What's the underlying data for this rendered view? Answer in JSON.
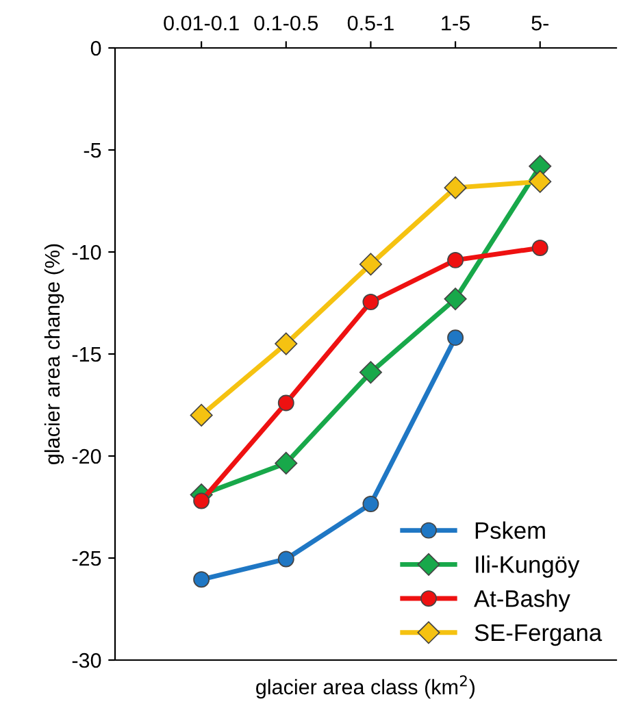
{
  "chart_data": {
    "type": "line",
    "xlabel": "glacier area class (km$^{2}$)",
    "ylabel": "glacier area change (%)",
    "categories": [
      "0.01-0.1",
      "0.1-0.5",
      "0.5-1",
      "1-5",
      "5-"
    ],
    "ylim": [
      -30,
      0
    ],
    "yticks": [
      -30,
      -25,
      -20,
      -15,
      -10,
      -5,
      0
    ],
    "grid": false,
    "legend": "bottom right",
    "series": [
      {
        "name": "Pskem",
        "color": "#1f77c4",
        "marker": "circle",
        "values": [
          -26.05,
          -25.05,
          -22.35,
          -14.2,
          null
        ]
      },
      {
        "name": "Ili-Kungöy",
        "color": "#18a84a",
        "marker": "diamond",
        "values": [
          -21.9,
          -20.35,
          -15.9,
          -12.3,
          -5.8
        ]
      },
      {
        "name": "At-Bashy",
        "color": "#ee1111",
        "marker": "circle",
        "values": [
          -22.2,
          -17.4,
          -12.45,
          -10.4,
          -9.8
        ]
      },
      {
        "name": "SE-Fergana",
        "color": "#f5c211",
        "marker": "diamond",
        "values": [
          -18.0,
          -14.5,
          -10.6,
          -6.85,
          -6.55
        ]
      }
    ]
  }
}
